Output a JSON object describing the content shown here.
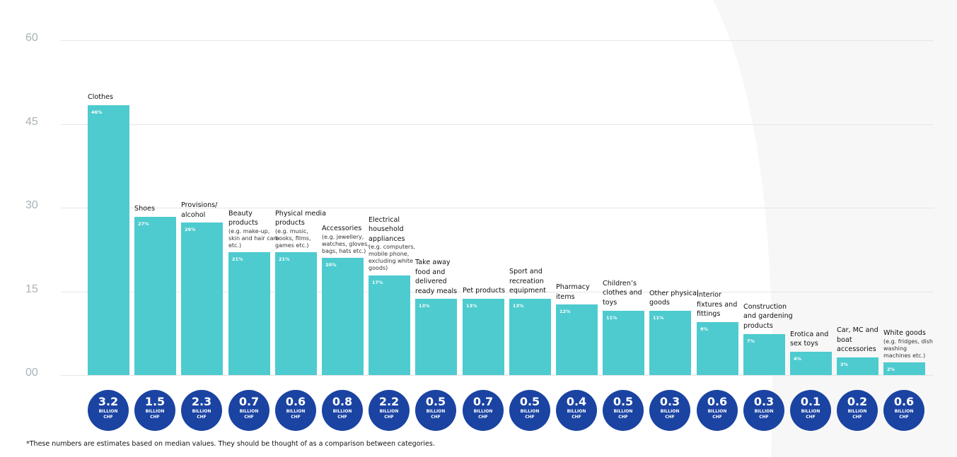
{
  "colors": {
    "bar": "#4ecbcf",
    "bubble": "#1a43a2",
    "tick": "#a9b3b8",
    "grid": "#e6e6e6",
    "bg_shape": "#f7f7f7"
  },
  "chart_data": {
    "type": "bar",
    "title": "",
    "xlabel": "",
    "ylabel": "",
    "yticks": [
      "00",
      "15",
      "30",
      "45",
      "60"
    ],
    "ylim": [
      0,
      60
    ],
    "grid": true,
    "categories": [
      {
        "name": "Clothes",
        "sub": ""
      },
      {
        "name": "Shoes",
        "sub": ""
      },
      {
        "name": "Provisions/ alcohol",
        "sub": ""
      },
      {
        "name": "Beauty products",
        "sub": "(e.g. make-up, skin and hair care etc.)"
      },
      {
        "name": "Physical media products",
        "sub": "(e.g. music, books, films, games etc.)"
      },
      {
        "name": "Accessories",
        "sub": "(e.g. jewellery, watches, gloves, bags, hats etc.)"
      },
      {
        "name": "Electrical household appliances",
        "sub": "(e.g. computers, mobile phone, excluding white goods)"
      },
      {
        "name": "Take away food and delivered ready meals",
        "sub": ""
      },
      {
        "name": "Pet products",
        "sub": ""
      },
      {
        "name": "Sport and recreation equipment",
        "sub": ""
      },
      {
        "name": "Pharmacy items",
        "sub": ""
      },
      {
        "name": "Children’s clothes and toys",
        "sub": ""
      },
      {
        "name": "Other physical goods",
        "sub": ""
      },
      {
        "name": "Interior fixtures and fittings",
        "sub": ""
      },
      {
        "name": "Construction and gardening products",
        "sub": ""
      },
      {
        "name": "Erotica and sex toys",
        "sub": ""
      },
      {
        "name": "Car, MC and boat accessories",
        "sub": ""
      },
      {
        "name": "White goods",
        "sub": "(e.g. fridges, dish washing machines etc.)"
      }
    ],
    "values": [
      46,
      27,
      26,
      21,
      21,
      20,
      17,
      13,
      13,
      13,
      12,
      11,
      11,
      9,
      7,
      4,
      3,
      2
    ],
    "value_labels": [
      "46%",
      "27%",
      "26%",
      "21%",
      "21%",
      "20%",
      "17%",
      "13%",
      "13%",
      "13%",
      "12%",
      "11%",
      "11%",
      "9%",
      "7%",
      "4%",
      "3%",
      "2%"
    ],
    "spend_billion_chf": [
      "3.2",
      "1.5",
      "2.3",
      "0.7",
      "0.6",
      "0.8",
      "2.2",
      "0.5",
      "0.7",
      "0.5",
      "0.4",
      "0.5",
      "0.3",
      "0.6",
      "0.3",
      "0.1",
      "0.2",
      "0.6"
    ],
    "spend_unit_line1": "BILLION",
    "spend_unit_line2": "CHF"
  },
  "footnote": "*These numbers are estimates based on median values. They should be thought of as a comparison between categories."
}
